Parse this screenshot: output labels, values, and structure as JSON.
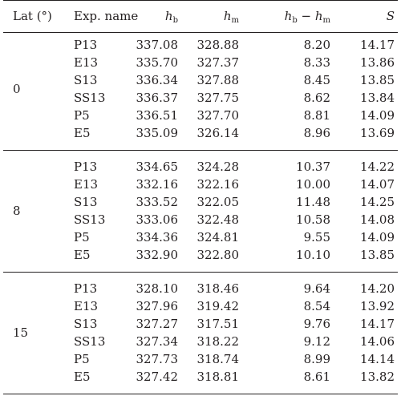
{
  "header": {
    "lat": "Lat (°)",
    "exp_name": "Exp. name",
    "hb": {
      "symbol": "h",
      "sub": "b"
    },
    "hm": {
      "symbol": "h",
      "sub": "m"
    },
    "diff": {
      "h1": "h",
      "s1": "b",
      "minus": " − ",
      "h2": "h",
      "s2": "m"
    },
    "s": "S"
  },
  "groups": [
    {
      "lat": "0",
      "rows": [
        {
          "name": "P13",
          "hb": "337.08",
          "hm": "328.88",
          "diff": "8.20",
          "s": "14.17"
        },
        {
          "name": "E13",
          "hb": "335.70",
          "hm": "327.37",
          "diff": "8.33",
          "s": "13.86"
        },
        {
          "name": "S13",
          "hb": "336.34",
          "hm": "327.88",
          "diff": "8.45",
          "s": "13.85"
        },
        {
          "name": "SS13",
          "hb": "336.37",
          "hm": "327.75",
          "diff": "8.62",
          "s": "13.84"
        },
        {
          "name": "P5",
          "hb": "336.51",
          "hm": "327.70",
          "diff": "8.81",
          "s": "14.09"
        },
        {
          "name": "E5",
          "hb": "335.09",
          "hm": "326.14",
          "diff": "8.96",
          "s": "13.69"
        }
      ]
    },
    {
      "lat": "8",
      "rows": [
        {
          "name": "P13",
          "hb": "334.65",
          "hm": "324.28",
          "diff": "10.37",
          "s": "14.22"
        },
        {
          "name": "E13",
          "hb": "332.16",
          "hm": "322.16",
          "diff": "10.00",
          "s": "14.07"
        },
        {
          "name": "S13",
          "hb": "333.52",
          "hm": "322.05",
          "diff": "11.48",
          "s": "14.25"
        },
        {
          "name": "SS13",
          "hb": "333.06",
          "hm": "322.48",
          "diff": "10.58",
          "s": "14.08"
        },
        {
          "name": "P5",
          "hb": "334.36",
          "hm": "324.81",
          "diff": "9.55",
          "s": "14.09"
        },
        {
          "name": "E5",
          "hb": "332.90",
          "hm": "322.80",
          "diff": "10.10",
          "s": "13.85"
        }
      ]
    },
    {
      "lat": "15",
      "rows": [
        {
          "name": "P13",
          "hb": "328.10",
          "hm": "318.46",
          "diff": "9.64",
          "s": "14.20"
        },
        {
          "name": "E13",
          "hb": "327.96",
          "hm": "319.42",
          "diff": "8.54",
          "s": "13.92"
        },
        {
          "name": "S13",
          "hb": "327.27",
          "hm": "317.51",
          "diff": "9.76",
          "s": "14.17"
        },
        {
          "name": "SS13",
          "hb": "327.34",
          "hm": "318.22",
          "diff": "9.12",
          "s": "14.06"
        },
        {
          "name": "P5",
          "hb": "327.73",
          "hm": "318.74",
          "diff": "8.99",
          "s": "14.14"
        },
        {
          "name": "E5",
          "hb": "327.42",
          "hm": "318.81",
          "diff": "8.61",
          "s": "13.82"
        }
      ]
    }
  ]
}
